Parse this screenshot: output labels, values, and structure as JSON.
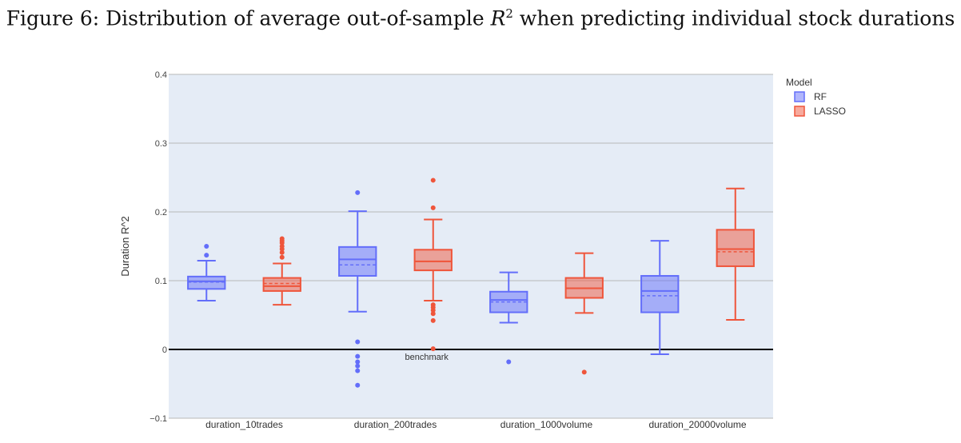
{
  "caption": {
    "prefix": "Figure 6: Distribution of average out-of-sample ",
    "var": "R",
    "exp": "2",
    "suffix": " when predicting individual stock durations"
  },
  "chart_data": {
    "type": "box",
    "ylabel": "Duration R^2",
    "ylim": [
      -0.1,
      0.4
    ],
    "yticks": [
      -0.1,
      0,
      0.1,
      0.2,
      0.3,
      0.4
    ],
    "ytick_labels": [
      "−0.1",
      "0",
      "0.1",
      "0.2",
      "0.3",
      "0.4"
    ],
    "grid": true,
    "categories": [
      "duration_10trades",
      "duration_200trades",
      "duration_1000volume",
      "duration_20000volume"
    ],
    "legend": {
      "title": "Model",
      "position": "top-right"
    },
    "benchmark": {
      "value": 0,
      "label": "benchmark"
    },
    "series": [
      {
        "name": "RF",
        "color": "#636efa",
        "boxes": [
          {
            "lowerfence": 0.071,
            "q1": 0.088,
            "median": 0.099,
            "mean": 0.098,
            "q3": 0.106,
            "upperfence": 0.129,
            "outliers": [
              0.137,
              0.15
            ]
          },
          {
            "lowerfence": 0.055,
            "q1": 0.107,
            "median": 0.131,
            "mean": 0.123,
            "q3": 0.149,
            "upperfence": 0.201,
            "outliers": [
              0.228,
              0.011,
              -0.01,
              -0.018,
              -0.024,
              -0.031,
              -0.052
            ]
          },
          {
            "lowerfence": 0.039,
            "q1": 0.054,
            "median": 0.072,
            "mean": 0.069,
            "q3": 0.084,
            "upperfence": 0.112,
            "outliers": [
              -0.018
            ]
          },
          {
            "lowerfence": -0.007,
            "q1": 0.054,
            "median": 0.085,
            "mean": 0.078,
            "q3": 0.107,
            "upperfence": 0.158,
            "outliers": []
          }
        ]
      },
      {
        "name": "LASSO",
        "color": "#ef553b",
        "boxes": [
          {
            "lowerfence": 0.065,
            "q1": 0.085,
            "median": 0.092,
            "mean": 0.096,
            "q3": 0.104,
            "upperfence": 0.125,
            "outliers": [
              0.134,
              0.141,
              0.146,
              0.15,
              0.155,
              0.158,
              0.161
            ]
          },
          {
            "lowerfence": 0.071,
            "q1": 0.115,
            "median": 0.128,
            "mean": 0.128,
            "q3": 0.145,
            "upperfence": 0.189,
            "outliers": [
              0.246,
              0.206,
              0.065,
              0.061,
              0.057,
              0.052,
              0.042,
              0.001
            ]
          },
          {
            "lowerfence": 0.053,
            "q1": 0.075,
            "median": 0.089,
            "mean": 0.089,
            "q3": 0.104,
            "upperfence": 0.14,
            "outliers": [
              -0.033
            ]
          },
          {
            "lowerfence": 0.043,
            "q1": 0.121,
            "median": 0.146,
            "mean": 0.142,
            "q3": 0.174,
            "upperfence": 0.234,
            "outliers": []
          }
        ]
      }
    ]
  }
}
